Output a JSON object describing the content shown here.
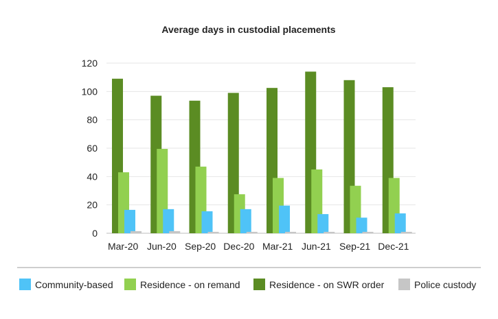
{
  "chart_data": {
    "type": "bar",
    "title": "Average days in custodial placements",
    "xlabel": "",
    "ylabel": "",
    "ylim": [
      0,
      120
    ],
    "yticks": [
      0,
      20,
      40,
      60,
      80,
      100,
      120
    ],
    "categories": [
      "Mar-20",
      "Jun-20",
      "Sep-20",
      "Dec-20",
      "Mar-21",
      "Jun-21",
      "Sep-21",
      "Dec-21"
    ],
    "legend_position": "bottom",
    "grid": true,
    "series": [
      {
        "name": "Residence - on SWR order",
        "color": "#5b8c23",
        "values": [
          109,
          97,
          93.5,
          99,
          102.5,
          114,
          108,
          103
        ]
      },
      {
        "name": "Residence - on remand",
        "color": "#92d050",
        "values": [
          43,
          59.5,
          47,
          27.5,
          39,
          45,
          33.5,
          39
        ]
      },
      {
        "name": "Community-based",
        "color": "#4fc3f7",
        "values": [
          16.5,
          17,
          15.5,
          17,
          19.5,
          13.5,
          11,
          14
        ]
      },
      {
        "name": "Police custody",
        "color": "#c6c6c6",
        "values": [
          1.5,
          1.5,
          1,
          1,
          1,
          1,
          1,
          1
        ]
      }
    ],
    "legend_order": [
      "Community-based",
      "Residence - on remand",
      "Residence - on SWR order",
      "Police custody"
    ]
  }
}
